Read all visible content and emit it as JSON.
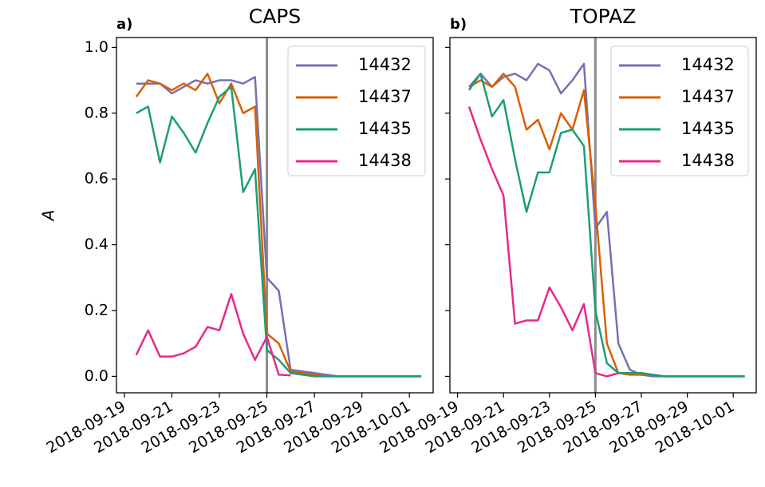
{
  "chart_data": [
    {
      "type": "line",
      "panel_label": "a)",
      "title": "CAPS",
      "ylabel": "A",
      "x": [
        "2018-09-19 12:00",
        "2018-09-20 00:00",
        "2018-09-20 12:00",
        "2018-09-21 00:00",
        "2018-09-21 12:00",
        "2018-09-22 00:00",
        "2018-09-22 12:00",
        "2018-09-23 00:00",
        "2018-09-23 12:00",
        "2018-09-24 00:00",
        "2018-09-24 12:00",
        "2018-09-25 00:00",
        "2018-09-25 12:00",
        "2018-09-26 00:00",
        "2018-09-26 12:00",
        "2018-09-27 00:00",
        "2018-09-27 12:00",
        "2018-09-28 00:00",
        "2018-09-28 12:00",
        "2018-09-29 00:00",
        "2018-09-29 12:00",
        "2018-09-30 00:00",
        "2018-09-30 12:00",
        "2018-10-01 00:00",
        "2018-10-01 12:00"
      ],
      "series": [
        {
          "name": "14432",
          "color": "#7570b3",
          "values": [
            0.89,
            0.89,
            0.89,
            0.86,
            0.88,
            0.9,
            0.89,
            0.9,
            0.9,
            0.89,
            0.91,
            0.3,
            0.26,
            0.02,
            0.015,
            0.01,
            0.005,
            0,
            0,
            0,
            0,
            0,
            0,
            0,
            0
          ]
        },
        {
          "name": "14437",
          "color": "#d95f02",
          "values": [
            0.85,
            0.9,
            0.89,
            0.87,
            0.89,
            0.87,
            0.92,
            0.83,
            0.89,
            0.8,
            0.82,
            0.13,
            0.1,
            0.015,
            0.01,
            0.005,
            0,
            0,
            0,
            0,
            0,
            0,
            0,
            0,
            0
          ]
        },
        {
          "name": "14435",
          "color": "#1b9e77",
          "values": [
            0.8,
            0.82,
            0.65,
            0.79,
            0.74,
            0.68,
            0.77,
            0.85,
            0.88,
            0.56,
            0.63,
            0.08,
            0.05,
            0.01,
            0.005,
            0,
            0,
            0,
            0,
            0,
            0,
            0,
            0,
            0,
            0
          ]
        },
        {
          "name": "14438",
          "color": "#e7298a",
          "values": [
            0.065,
            0.14,
            0.06,
            0.06,
            0.07,
            0.09,
            0.15,
            0.14,
            0.25,
            0.13,
            0.05,
            0.12,
            0.005,
            0.003,
            null,
            null,
            null,
            null,
            null,
            null,
            null,
            null,
            null,
            null,
            null
          ]
        }
      ],
      "xlim": [
        "2018-09-18 16:00",
        "2018-10-02 00:00"
      ],
      "xticks": [
        "2018-09-19",
        "2018-09-21",
        "2018-09-23",
        "2018-09-25",
        "2018-09-27",
        "2018-09-29",
        "2018-10-01"
      ],
      "ylim": [
        -0.05,
        1.03
      ],
      "yticks": [
        {
          "value": 0,
          "label": "0.0"
        },
        0.2,
        0.4,
        0.6,
        0.8,
        {
          "value": 1,
          "label": "1.0"
        }
      ],
      "ytick_labels": true,
      "vline": "2018-09-25",
      "vline_color": "#8c8c8c",
      "legend": "upper right",
      "grid": false
    },
    {
      "type": "line",
      "panel_label": "b)",
      "title": "TOPAZ",
      "x": [
        "2018-09-19 12:00",
        "2018-09-20 00:00",
        "2018-09-20 12:00",
        "2018-09-21 00:00",
        "2018-09-21 12:00",
        "2018-09-22 00:00",
        "2018-09-22 12:00",
        "2018-09-23 00:00",
        "2018-09-23 12:00",
        "2018-09-24 00:00",
        "2018-09-24 12:00",
        "2018-09-25 00:00",
        "2018-09-25 12:00",
        "2018-09-26 00:00",
        "2018-09-26 12:00",
        "2018-09-27 00:00",
        "2018-09-27 12:00",
        "2018-09-28 00:00",
        "2018-09-28 12:00",
        "2018-09-29 00:00",
        "2018-09-29 12:00",
        "2018-09-30 00:00",
        "2018-09-30 12:00",
        "2018-10-01 00:00",
        "2018-10-01 12:00"
      ],
      "series": [
        {
          "name": "14432",
          "color": "#7570b3",
          "values": [
            0.88,
            0.92,
            0.88,
            0.91,
            0.92,
            0.9,
            0.95,
            0.93,
            0.86,
            0.9,
            0.95,
            0.45,
            0.5,
            0.1,
            0.02,
            0.005,
            0,
            0,
            0,
            0,
            0,
            0,
            0,
            0,
            0
          ]
        },
        {
          "name": "14437",
          "color": "#d95f02",
          "values": [
            0.88,
            0.9,
            0.88,
            0.92,
            0.88,
            0.75,
            0.78,
            0.69,
            0.8,
            0.75,
            0.87,
            0.52,
            0.1,
            0.01,
            0.005,
            0.005,
            0.005,
            0,
            0,
            0,
            0,
            0,
            0,
            0,
            0
          ]
        },
        {
          "name": "14435",
          "color": "#1b9e77",
          "values": [
            0.87,
            0.92,
            0.79,
            0.84,
            0.66,
            0.5,
            0.62,
            0.62,
            0.74,
            0.75,
            0.7,
            0.2,
            0.04,
            0.01,
            0.01,
            0.01,
            0.005,
            0,
            0,
            0,
            0,
            0,
            0,
            0,
            0
          ]
        },
        {
          "name": "14438",
          "color": "#e7298a",
          "values": [
            0.82,
            0.72,
            0.63,
            0.55,
            0.16,
            0.17,
            0.17,
            0.27,
            0.21,
            0.14,
            0.22,
            0.01,
            0,
            0.01,
            null,
            null,
            null,
            null,
            null,
            null,
            null,
            null,
            null,
            null,
            null
          ]
        }
      ],
      "xlim": [
        "2018-09-18 16:00",
        "2018-10-02 00:00"
      ],
      "xticks": [
        "2018-09-19",
        "2018-09-21",
        "2018-09-23",
        "2018-09-25",
        "2018-09-27",
        "2018-09-29",
        "2018-10-01"
      ],
      "ylim": [
        -0.05,
        1.03
      ],
      "yticks": [
        0,
        0.2,
        0.4,
        0.6,
        0.8,
        1
      ],
      "ytick_labels": false,
      "vline": "2018-09-25",
      "vline_color": "#8c8c8c",
      "legend": "upper right",
      "grid": false
    }
  ]
}
